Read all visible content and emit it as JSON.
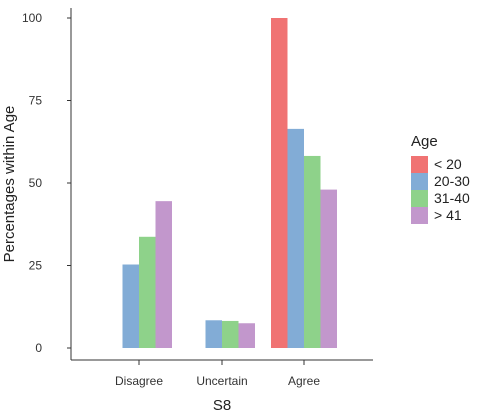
{
  "chart_data": {
    "type": "bar",
    "title": "",
    "xlabel": "S8",
    "ylabel": "Percentages within Age",
    "categories": [
      "Disagree",
      "Uncertain",
      "Agree"
    ],
    "ylim": [
      0,
      105
    ],
    "yticks": [
      0,
      25,
      50,
      75,
      100
    ],
    "grid": false,
    "legend": {
      "title": "Age",
      "placement": "right"
    },
    "series": [
      {
        "name": "< 20",
        "color": "#f07373",
        "values": [
          0,
          0,
          100
        ]
      },
      {
        "name": "20-30",
        "color": "#82acd6",
        "values": [
          25.3,
          8.4,
          66.4
        ]
      },
      {
        "name": "31-40",
        "color": "#8ed28a",
        "values": [
          33.7,
          8.2,
          58.2
        ]
      },
      {
        "name": "> 41",
        "color": "#c297cc",
        "values": [
          44.5,
          7.5,
          48.0
        ]
      }
    ]
  }
}
